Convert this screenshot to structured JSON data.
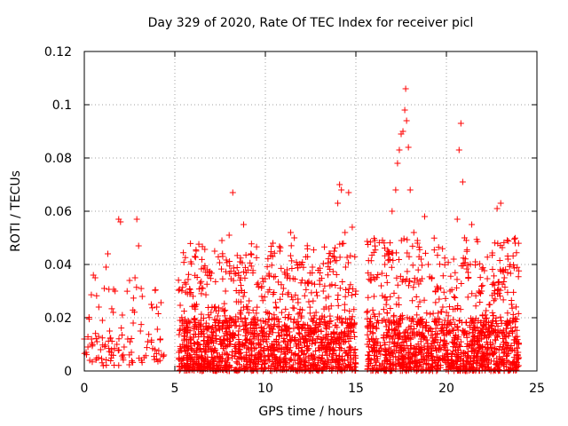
{
  "chart_data": {
    "type": "scatter",
    "title": "Day 329 of 2020, Rate Of TEC Index for receiver picl",
    "xlabel": "GPS time / hours",
    "ylabel": "ROTI / TECUs",
    "xlim": [
      0,
      25
    ],
    "ylim": [
      0,
      0.12
    ],
    "xticks": [
      0,
      5,
      10,
      15,
      20,
      25
    ],
    "xtick_labels": [
      "0",
      "5",
      "10",
      "15",
      "20",
      "25"
    ],
    "yticks": [
      0,
      0.02,
      0.04,
      0.06,
      0.08,
      0.1,
      0.12
    ],
    "ytick_labels": [
      "0",
      "0.02",
      "0.04",
      "0.06",
      "0.08",
      "0.1",
      "0.12"
    ],
    "grid": true,
    "marker": "+",
    "color": "#ff0000",
    "series": [
      {
        "name": "ROTI",
        "points": [
          [
            0.0,
            0.012
          ],
          [
            0.1,
            0.007
          ],
          [
            0.2,
            0.009
          ],
          [
            0.3,
            0.004
          ],
          [
            0.4,
            0.012
          ],
          [
            0.5,
            0.036
          ],
          [
            0.6,
            0.035
          ],
          [
            0.7,
            0.011
          ],
          [
            0.8,
            0.024
          ],
          [
            0.9,
            0.008
          ],
          [
            1.0,
            0.019
          ],
          [
            1.1,
            0.031
          ],
          [
            1.2,
            0.039
          ],
          [
            1.3,
            0.044
          ],
          [
            1.4,
            0.015
          ],
          [
            1.5,
            0.006
          ],
          [
            1.6,
            0.022
          ],
          [
            1.7,
            0.03
          ],
          [
            1.8,
            0.01
          ],
          [
            1.9,
            0.057
          ],
          [
            2.0,
            0.056
          ],
          [
            2.1,
            0.021
          ],
          [
            2.2,
            0.009
          ],
          [
            2.4,
            0.012
          ],
          [
            2.5,
            0.034
          ],
          [
            2.6,
            0.007
          ],
          [
            2.7,
            0.018
          ],
          [
            2.8,
            0.035
          ],
          [
            2.9,
            0.057
          ],
          [
            3.0,
            0.047
          ],
          [
            3.1,
            0.015
          ],
          [
            3.2,
            0.028
          ],
          [
            3.3,
            0.005
          ],
          [
            3.5,
            0.011
          ],
          [
            3.7,
            0.025
          ],
          [
            3.9,
            0.008
          ],
          [
            4.0,
            0.024
          ],
          [
            4.2,
            0.012
          ],
          [
            4.4,
            0.006
          ],
          [
            5.3,
            0.004
          ],
          [
            5.5,
            0.018
          ],
          [
            5.7,
            0.029
          ],
          [
            5.9,
            0.012
          ],
          [
            6.1,
            0.043
          ],
          [
            6.2,
            0.025
          ],
          [
            6.4,
            0.033
          ],
          [
            6.6,
            0.014
          ],
          [
            6.8,
            0.038
          ],
          [
            7.0,
            0.022
          ],
          [
            7.2,
            0.045
          ],
          [
            7.4,
            0.018
          ],
          [
            7.6,
            0.049
          ],
          [
            7.8,
            0.03
          ],
          [
            8.0,
            0.051
          ],
          [
            8.2,
            0.067
          ],
          [
            8.4,
            0.026
          ],
          [
            8.6,
            0.041
          ],
          [
            8.8,
            0.055
          ],
          [
            9.0,
            0.015
          ],
          [
            9.2,
            0.044
          ],
          [
            9.4,
            0.02
          ],
          [
            9.6,
            0.033
          ],
          [
            9.8,
            0.028
          ],
          [
            10.0,
            0.018
          ],
          [
            10.2,
            0.036
          ],
          [
            10.4,
            0.043
          ],
          [
            10.6,
            0.024
          ],
          [
            10.8,
            0.045
          ],
          [
            11.0,
            0.031
          ],
          [
            11.2,
            0.038
          ],
          [
            11.4,
            0.052
          ],
          [
            11.6,
            0.05
          ],
          [
            11.8,
            0.027
          ],
          [
            12.0,
            0.04
          ],
          [
            12.2,
            0.033
          ],
          [
            12.4,
            0.026
          ],
          [
            12.6,
            0.039
          ],
          [
            12.8,
            0.022
          ],
          [
            13.0,
            0.034
          ],
          [
            13.2,
            0.03
          ],
          [
            13.4,
            0.018
          ],
          [
            13.6,
            0.041
          ],
          [
            13.8,
            0.045
          ],
          [
            14.0,
            0.063
          ],
          [
            14.1,
            0.07
          ],
          [
            14.2,
            0.068
          ],
          [
            14.4,
            0.052
          ],
          [
            14.6,
            0.067
          ],
          [
            14.8,
            0.054
          ],
          [
            15.0,
            0.03
          ],
          [
            15.6,
            0.022
          ],
          [
            15.8,
            0.034
          ],
          [
            16.0,
            0.028
          ],
          [
            16.2,
            0.019
          ],
          [
            16.4,
            0.032
          ],
          [
            16.6,
            0.04
          ],
          [
            16.8,
            0.044
          ],
          [
            17.0,
            0.06
          ],
          [
            17.2,
            0.068
          ],
          [
            17.3,
            0.078
          ],
          [
            17.4,
            0.083
          ],
          [
            17.5,
            0.089
          ],
          [
            17.6,
            0.09
          ],
          [
            17.7,
            0.098
          ],
          [
            17.75,
            0.106
          ],
          [
            17.8,
            0.094
          ],
          [
            17.9,
            0.084
          ],
          [
            18.0,
            0.068
          ],
          [
            18.2,
            0.052
          ],
          [
            18.4,
            0.048
          ],
          [
            18.6,
            0.042
          ],
          [
            18.8,
            0.058
          ],
          [
            19.0,
            0.04
          ],
          [
            19.2,
            0.035
          ],
          [
            19.4,
            0.03
          ],
          [
            19.6,
            0.027
          ],
          [
            19.8,
            0.024
          ],
          [
            20.0,
            0.022
          ],
          [
            20.2,
            0.03
          ],
          [
            20.4,
            0.042
          ],
          [
            20.6,
            0.057
          ],
          [
            20.7,
            0.083
          ],
          [
            20.8,
            0.093
          ],
          [
            20.9,
            0.071
          ],
          [
            21.0,
            0.05
          ],
          [
            21.2,
            0.037
          ],
          [
            21.4,
            0.055
          ],
          [
            21.6,
            0.041
          ],
          [
            21.8,
            0.03
          ],
          [
            22.0,
            0.021
          ],
          [
            22.2,
            0.016
          ],
          [
            22.4,
            0.025
          ],
          [
            22.6,
            0.033
          ],
          [
            22.8,
            0.061
          ],
          [
            23.0,
            0.063
          ],
          [
            23.2,
            0.035
          ],
          [
            23.4,
            0.042
          ],
          [
            23.6,
            0.025
          ],
          [
            23.8,
            0.048
          ],
          [
            24.0,
            0.005
          ]
        ]
      }
    ],
    "clusters": [
      {
        "x_range": [
          0.0,
          4.4
        ],
        "baseline_range": [
          0.002,
          0.014
        ],
        "density": 90,
        "peak_range": [
          0.014,
          0.032
        ]
      },
      {
        "x_range": [
          5.2,
          15.0
        ],
        "baseline_range": [
          0.0,
          0.02
        ],
        "density": 1500,
        "peak_range": [
          0.02,
          0.048
        ]
      },
      {
        "x_range": [
          15.6,
          24.0
        ],
        "baseline_range": [
          0.0,
          0.02
        ],
        "density": 1300,
        "peak_range": [
          0.02,
          0.05
        ]
      }
    ]
  }
}
